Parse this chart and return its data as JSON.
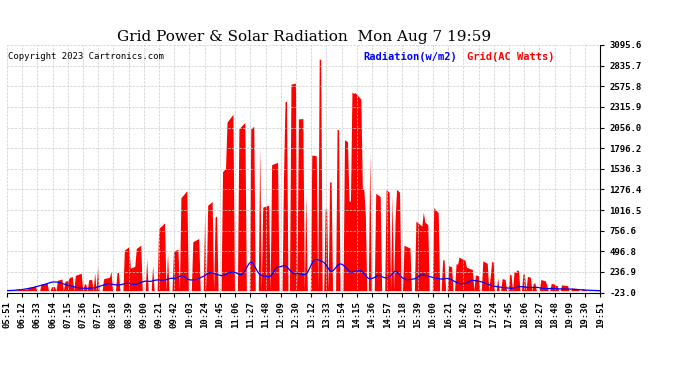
{
  "title": "Grid Power & Solar Radiation  Mon Aug 7 19:59",
  "copyright": "Copyright 2023 Cartronics.com",
  "legend_radiation": "Radiation(w/m2)",
  "legend_grid": "Grid(AC Watts)",
  "ylabel_right_ticks": [
    3095.6,
    2835.7,
    2575.8,
    2315.9,
    2056.0,
    1796.2,
    1536.3,
    1276.4,
    1016.5,
    756.6,
    496.8,
    236.9,
    -23.0
  ],
  "ymin": -23.0,
  "ymax": 3095.6,
  "x_labels": [
    "05:51",
    "06:12",
    "06:33",
    "06:54",
    "07:15",
    "07:36",
    "07:57",
    "08:18",
    "08:39",
    "09:00",
    "09:21",
    "09:42",
    "10:03",
    "10:24",
    "10:45",
    "11:06",
    "11:27",
    "11:48",
    "12:09",
    "12:30",
    "13:12",
    "13:33",
    "13:54",
    "14:15",
    "14:36",
    "14:57",
    "15:18",
    "15:39",
    "16:00",
    "16:21",
    "16:42",
    "17:03",
    "17:24",
    "17:45",
    "18:06",
    "18:27",
    "18:48",
    "19:09",
    "19:30",
    "19:51"
  ],
  "background_color": "#ffffff",
  "grid_color": "#cccccc",
  "fill_color_red": "#ff0000",
  "line_color_blue": "#0000ff",
  "title_fontsize": 11,
  "tick_fontsize": 6.5,
  "copyright_fontsize": 6.5
}
